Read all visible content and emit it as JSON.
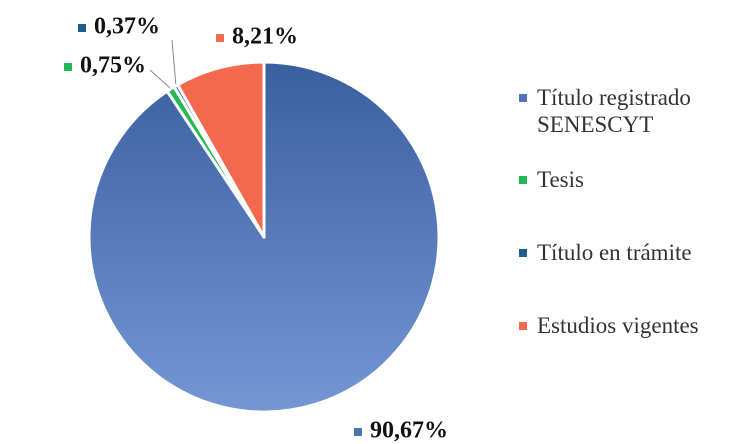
{
  "chart_data": {
    "type": "pie",
    "categories": [
      "Título registrado SENESCYT",
      "Tesis",
      "Título en trámite",
      "Estudios vigentes"
    ],
    "values": [
      90.67,
      0.75,
      0.37,
      8.21
    ],
    "value_labels": [
      "90,67%",
      "0,75%",
      "0,37%",
      "8,21%"
    ],
    "colors": [
      "#4f74b8",
      "#22b855",
      "#1e5c8c",
      "#f2694d"
    ],
    "legend": "right"
  }
}
